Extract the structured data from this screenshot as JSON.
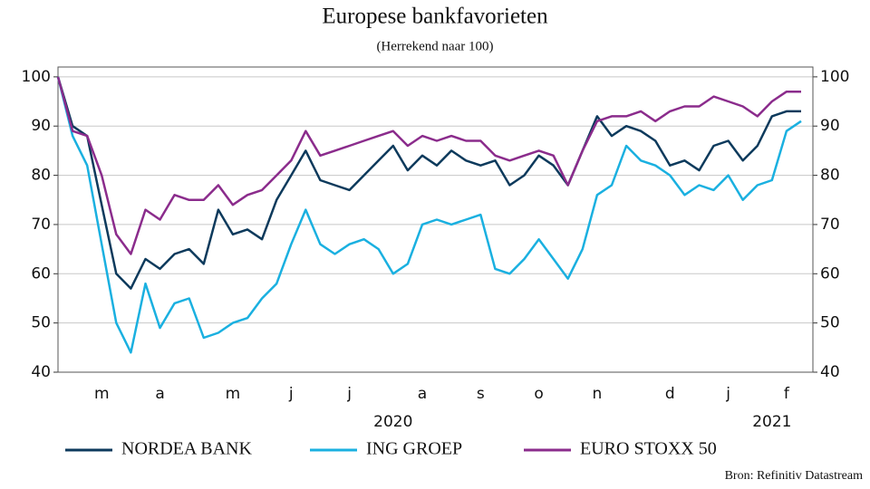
{
  "chart_data": {
    "type": "line",
    "title": "Europese bankfavorieten",
    "subtitle": "(Herrekend naar 100)",
    "source": "Bron: Refinitiv Datastream",
    "categories": [
      null,
      null,
      null,
      "m",
      null,
      null,
      null,
      "a",
      null,
      null,
      null,
      null,
      "m",
      null,
      null,
      null,
      "j",
      null,
      null,
      null,
      "j",
      null,
      null,
      null,
      null,
      "a",
      null,
      null,
      null,
      "s",
      null,
      null,
      null,
      "o",
      null,
      null,
      null,
      "n",
      null,
      null,
      null,
      null,
      "d",
      null,
      null,
      null,
      "j",
      null,
      null,
      null,
      "f",
      null
    ],
    "year_labels": [
      {
        "text": "2020",
        "category": 23
      },
      {
        "text": "2021",
        "category": 49
      }
    ],
    "series": [
      {
        "name": "NORDEA BANK",
        "color": "#0d3a5c",
        "values": [
          100,
          90,
          88,
          74,
          60,
          57,
          63,
          61,
          64,
          65,
          62,
          73,
          68,
          69,
          67,
          75,
          80,
          85,
          79,
          78,
          77,
          80,
          83,
          86,
          81,
          84,
          82,
          85,
          83,
          82,
          83,
          78,
          80,
          84,
          82,
          78,
          85,
          92,
          88,
          90,
          89,
          87,
          82,
          83,
          81,
          86,
          87,
          83,
          86,
          92,
          93,
          93
        ]
      },
      {
        "name": "ING GROEP",
        "color": "#1ab0e0",
        "values": [
          100,
          88,
          82,
          66,
          50,
          44,
          58,
          49,
          54,
          55,
          47,
          48,
          50,
          51,
          55,
          58,
          66,
          73,
          66,
          64,
          66,
          67,
          65,
          60,
          62,
          70,
          71,
          70,
          71,
          72,
          61,
          60,
          63,
          67,
          63,
          59,
          65,
          76,
          78,
          86,
          83,
          82,
          80,
          76,
          78,
          77,
          80,
          75,
          78,
          79,
          89,
          91
        ]
      },
      {
        "name": "EURO STOXX 50",
        "color": "#8b2c8c",
        "values": [
          100,
          89,
          88,
          80,
          68,
          64,
          73,
          71,
          76,
          75,
          75,
          78,
          74,
          76,
          77,
          80,
          83,
          89,
          84,
          85,
          86,
          87,
          88,
          89,
          86,
          88,
          87,
          88,
          87,
          87,
          84,
          83,
          84,
          85,
          84,
          78,
          85,
          91,
          92,
          92,
          93,
          91,
          93,
          94,
          94,
          96,
          95,
          94,
          92,
          95,
          97,
          97
        ]
      }
    ],
    "ylim": [
      40,
      102
    ],
    "yticks": [
      40,
      50,
      60,
      70,
      80,
      90,
      100
    ],
    "y2lim": [
      40,
      102
    ],
    "y2ticks": [
      40,
      50,
      60,
      70,
      80,
      90,
      100
    ],
    "grid": true,
    "legend": "bottom"
  }
}
